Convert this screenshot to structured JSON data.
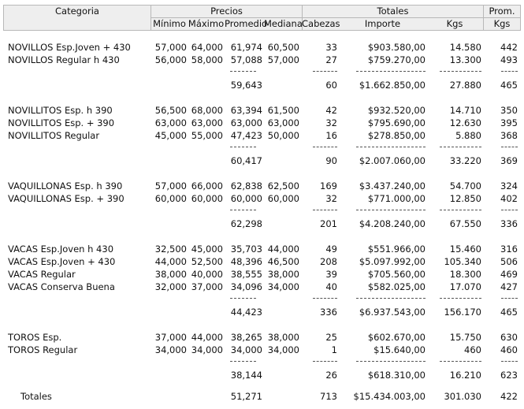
{
  "header": {
    "categoria": "Categoria",
    "precios": "Precios",
    "totales": "Totales",
    "prom": "Prom.",
    "columns": [
      "Mínimo",
      "Máximo",
      "Promedio",
      "Mediana",
      "Cabezas",
      "Importe",
      "Kgs",
      "Kgs"
    ]
  },
  "groups": [
    {
      "rows": [
        [
          "NOVILLOS Esp.Joven + 430",
          "57,000",
          "64,000",
          "61,974",
          "60,500",
          "33",
          "$903.580,00",
          "14.580",
          "442"
        ],
        [
          "NOVILLOS Regular h 430",
          "56,000",
          "58,000",
          "57,088",
          "57,000",
          "27",
          "$759.270,00",
          "13.300",
          "493"
        ]
      ],
      "subtotal": [
        "59,643",
        "60",
        "$1.662.850,00",
        "27.880",
        "465"
      ]
    },
    {
      "rows": [
        [
          "NOVILLITOS Esp. h 390",
          "56,500",
          "68,000",
          "63,394",
          "61,500",
          "42",
          "$932.520,00",
          "14.710",
          "350"
        ],
        [
          "NOVILLITOS Esp. + 390",
          "63,000",
          "63,000",
          "63,000",
          "63,000",
          "32",
          "$795.690,00",
          "12.630",
          "395"
        ],
        [
          "NOVILLITOS Regular",
          "45,000",
          "55,000",
          "47,423",
          "50,000",
          "16",
          "$278.850,00",
          "5.880",
          "368"
        ]
      ],
      "subtotal": [
        "60,417",
        "90",
        "$2.007.060,00",
        "33.220",
        "369"
      ]
    },
    {
      "rows": [
        [
          "VAQUILLONAS Esp. h 390",
          "57,000",
          "66,000",
          "62,838",
          "62,500",
          "169",
          "$3.437.240,00",
          "54.700",
          "324"
        ],
        [
          "VAQUILLONAS Esp. + 390",
          "60,000",
          "60,000",
          "60,000",
          "60,000",
          "32",
          "$771.000,00",
          "12.850",
          "402"
        ]
      ],
      "subtotal": [
        "62,298",
        "201",
        "$4.208.240,00",
        "67.550",
        "336"
      ]
    },
    {
      "rows": [
        [
          "VACAS Esp.Joven h 430",
          "32,500",
          "45,000",
          "35,703",
          "44,000",
          "49",
          "$551.966,00",
          "15.460",
          "316"
        ],
        [
          "VACAS Esp.Joven + 430",
          "44,000",
          "52,500",
          "48,396",
          "46,500",
          "208",
          "$5.097.992,00",
          "105.340",
          "506"
        ],
        [
          "VACAS Regular",
          "38,000",
          "40,000",
          "38,555",
          "38,000",
          "39",
          "$705.560,00",
          "18.300",
          "469"
        ],
        [
          "VACAS Conserva Buena",
          "32,000",
          "37,000",
          "34,096",
          "34,000",
          "40",
          "$582.025,00",
          "17.070",
          "427"
        ]
      ],
      "subtotal": [
        "44,423",
        "336",
        "$6.937.543,00",
        "156.170",
        "465"
      ]
    },
    {
      "rows": [
        [
          "TOROS Esp.",
          "37,000",
          "44,000",
          "38,265",
          "38,000",
          "25",
          "$602.670,00",
          "15.750",
          "630"
        ],
        [
          "TOROS Regular",
          "34,000",
          "34,000",
          "34,000",
          "34,000",
          "1",
          "$15.640,00",
          "460",
          "460"
        ]
      ],
      "subtotal": [
        "38,144",
        "26",
        "$618.310,00",
        "16.210",
        "623"
      ]
    }
  ],
  "totals": [
    "Totales",
    "51,271",
    "713",
    "$15.434.003,00",
    "301.030",
    "422"
  ]
}
